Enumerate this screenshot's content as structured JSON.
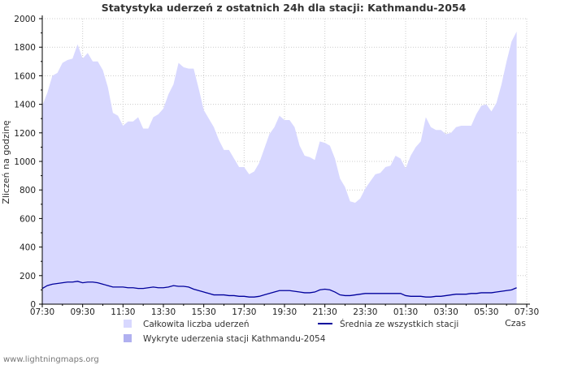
{
  "chart_data": {
    "type": "area",
    "title": "Statystyka uderzeń z ostatnich 24h dla stacji: Kathmandu-2054",
    "ylabel": "Zliczeń na godzinę",
    "xlabel": "Czas",
    "ylim": [
      0,
      2000
    ],
    "yticks": [
      0,
      200,
      400,
      600,
      800,
      1000,
      1200,
      1400,
      1600,
      1800,
      2000
    ],
    "xticks": [
      "07:30",
      "09:30",
      "11:30",
      "13:30",
      "15:30",
      "17:30",
      "19:30",
      "21:30",
      "23:30",
      "01:30",
      "03:30",
      "05:30",
      "07:30"
    ],
    "x_hours": [
      0,
      0.25,
      0.5,
      0.75,
      1,
      1.25,
      1.5,
      1.75,
      2,
      2.25,
      2.5,
      2.75,
      3,
      3.25,
      3.5,
      3.75,
      4,
      4.25,
      4.5,
      4.75,
      5,
      5.25,
      5.5,
      5.75,
      6,
      6.25,
      6.5,
      6.75,
      7,
      7.25,
      7.5,
      7.75,
      8,
      8.25,
      8.5,
      8.75,
      9,
      9.25,
      9.5,
      9.75,
      10,
      10.25,
      10.5,
      10.75,
      11,
      11.25,
      11.5,
      11.75,
      12,
      12.25,
      12.5,
      12.75,
      13,
      13.25,
      13.5,
      13.75,
      14,
      14.25,
      14.5,
      14.75,
      15,
      15.25,
      15.5,
      15.75,
      16,
      16.25,
      16.5,
      16.75,
      17,
      17.25,
      17.5,
      17.75,
      18,
      18.25,
      18.5,
      18.75,
      19,
      19.25,
      19.5,
      19.75,
      20,
      20.25,
      20.5,
      20.75,
      21,
      21.25,
      21.5,
      21.75,
      22,
      22.25,
      22.5,
      22.75,
      23,
      23.25,
      23.5,
      23.75,
      24
    ],
    "series": [
      {
        "name": "Całkowita liczba uderzeń",
        "color": "#d8d8ff",
        "values": [
          1390,
          1480,
          1600,
          1620,
          1690,
          1710,
          1720,
          1820,
          1720,
          1760,
          1700,
          1700,
          1640,
          1520,
          1340,
          1320,
          1250,
          1280,
          1280,
          1310,
          1230,
          1230,
          1310,
          1330,
          1370,
          1470,
          1540,
          1690,
          1660,
          1650,
          1650,
          1510,
          1360,
          1300,
          1240,
          1150,
          1080,
          1080,
          1020,
          960,
          960,
          910,
          930,
          990,
          1090,
          1190,
          1240,
          1320,
          1290,
          1290,
          1240,
          1110,
          1040,
          1030,
          1010,
          1140,
          1130,
          1110,
          1020,
          880,
          820,
          720,
          710,
          740,
          810,
          860,
          910,
          920,
          960,
          970,
          1040,
          1020,
          950,
          1040,
          1100,
          1140,
          1310,
          1240,
          1220,
          1220,
          1190,
          1200,
          1240,
          1250,
          1250,
          1250,
          1330,
          1390,
          1400,
          1350,
          1410,
          1540,
          1700,
          1840,
          1910
        ]
      },
      {
        "name": "Wykryte uderzenia stacji Kathmandu-2054",
        "color": "#b0b0f0",
        "values": []
      },
      {
        "name": "Średnia ze wszystkich stacji",
        "color": "#00009c",
        "values": [
          110,
          130,
          140,
          145,
          150,
          155,
          155,
          160,
          150,
          155,
          155,
          150,
          140,
          130,
          120,
          120,
          120,
          115,
          115,
          110,
          110,
          115,
          120,
          115,
          115,
          120,
          130,
          125,
          125,
          120,
          105,
          95,
          85,
          75,
          65,
          65,
          65,
          60,
          60,
          55,
          55,
          50,
          50,
          55,
          65,
          75,
          85,
          95,
          95,
          95,
          90,
          85,
          80,
          80,
          85,
          100,
          105,
          100,
          85,
          65,
          60,
          60,
          65,
          70,
          75,
          75,
          75,
          75,
          75,
          75,
          75,
          75,
          60,
          55,
          55,
          55,
          50,
          50,
          55,
          55,
          60,
          65,
          70,
          70,
          70,
          75,
          75,
          80,
          80,
          80,
          85,
          90,
          95,
          100,
          115
        ]
      }
    ],
    "legend": [
      {
        "label": "Całkowita liczba uderzeń",
        "kind": "area",
        "color": "#d8d8ff"
      },
      {
        "label": "Średnia ze wszystkich stacji",
        "kind": "line",
        "color": "#00009c"
      },
      {
        "label": "Wykryte uderzenia stacji Kathmandu-2054",
        "kind": "area",
        "color": "#b0b0f0"
      }
    ],
    "legend_position": "bottom"
  },
  "credit": "www.lightningmaps.org"
}
